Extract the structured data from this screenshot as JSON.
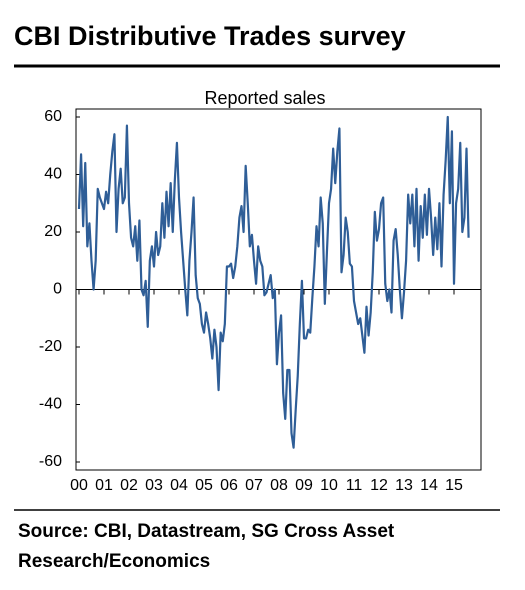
{
  "title": "CBI Distributive Trades survey",
  "source": "Source: CBI, Datastream, SG Cross Asset",
  "source_line2": "Research/Economics",
  "chart_data": {
    "type": "line",
    "title": "Reported sales",
    "categories": [
      "00",
      null,
      null,
      null,
      null,
      null,
      null,
      null,
      null,
      null,
      null,
      null,
      "01",
      null,
      null,
      null,
      null,
      null,
      null,
      null,
      null,
      null,
      null,
      null,
      "02",
      null,
      null,
      null,
      null,
      null,
      null,
      null,
      null,
      null,
      null,
      null,
      "03",
      null,
      null,
      null,
      null,
      null,
      null,
      null,
      null,
      null,
      null,
      null,
      "04",
      null,
      null,
      null,
      null,
      null,
      null,
      null,
      null,
      null,
      null,
      null,
      "05",
      null,
      null,
      null,
      null,
      null,
      null,
      null,
      null,
      null,
      null,
      null,
      "06",
      null,
      null,
      null,
      null,
      null,
      null,
      null,
      null,
      null,
      null,
      null,
      "07",
      null,
      null,
      null,
      null,
      null,
      null,
      null,
      null,
      null,
      null,
      null,
      "08",
      null,
      null,
      null,
      null,
      null,
      null,
      null,
      null,
      null,
      null,
      null,
      "09",
      null,
      null,
      null,
      null,
      null,
      null,
      null,
      null,
      null,
      null,
      null,
      "10",
      null,
      null,
      null,
      null,
      null,
      null,
      null,
      null,
      null,
      null,
      null,
      "11",
      null,
      null,
      null,
      null,
      null,
      null,
      null,
      null,
      null,
      null,
      null,
      "12",
      null,
      null,
      null,
      null,
      null,
      null,
      null,
      null,
      null,
      null,
      null,
      "13",
      null,
      null,
      null,
      null,
      null,
      null,
      null,
      null,
      null,
      null,
      null,
      "14",
      null,
      null,
      null,
      null,
      null,
      null,
      null,
      null,
      null,
      null,
      null,
      "15",
      null,
      null,
      null,
      null,
      null,
      null,
      null
    ],
    "series": [
      {
        "name": "Reported sales",
        "color": "#2f5e97",
        "values": [
          28,
          47,
          22,
          44,
          15,
          23,
          10,
          0,
          10,
          35,
          32,
          30,
          28,
          34,
          30,
          40,
          48,
          54,
          20,
          35,
          42,
          30,
          32,
          57,
          30,
          18,
          15,
          22,
          10,
          24,
          0,
          -2,
          3,
          -13,
          10,
          15,
          8,
          20,
          12,
          15,
          30,
          18,
          34,
          22,
          37,
          20,
          38,
          51,
          32,
          20,
          10,
          0,
          -9,
          10,
          20,
          32,
          5,
          -3,
          -5,
          -12,
          -15,
          -8,
          -12,
          -17,
          -24,
          -14,
          -20,
          -35,
          -15,
          -18,
          -12,
          8,
          8,
          9,
          4,
          8,
          15,
          25,
          29,
          20,
          43,
          30,
          15,
          19,
          10,
          2,
          15,
          10,
          8,
          -2,
          -1,
          2,
          5,
          -3,
          0,
          -26,
          -15,
          -9,
          -36,
          -45,
          -28,
          -28,
          -50,
          -55,
          -42,
          -30,
          -12,
          3,
          -17,
          -17,
          -14,
          -15,
          -3,
          8,
          22,
          15,
          32,
          23,
          -5,
          13,
          30,
          35,
          49,
          37,
          48,
          56,
          6,
          12,
          25,
          20,
          9,
          8,
          -4,
          -8,
          -12,
          -10,
          -16,
          -22,
          -6,
          -16,
          -8,
          6,
          27,
          17,
          21,
          30,
          32,
          2,
          -4,
          0,
          -8,
          17,
          21,
          12,
          0,
          -10,
          -1,
          10,
          33,
          23,
          33,
          15,
          35,
          10,
          29,
          18,
          33,
          19,
          35,
          25,
          12,
          25,
          14,
          30,
          8,
          33,
          45,
          60,
          30,
          55,
          2,
          30,
          35,
          51,
          20,
          25,
          49,
          18
        ]
      }
    ],
    "ylim": [
      -60,
      60
    ],
    "yticks": [
      -60,
      -40,
      -20,
      0,
      20,
      40,
      60
    ],
    "grid": false
  }
}
